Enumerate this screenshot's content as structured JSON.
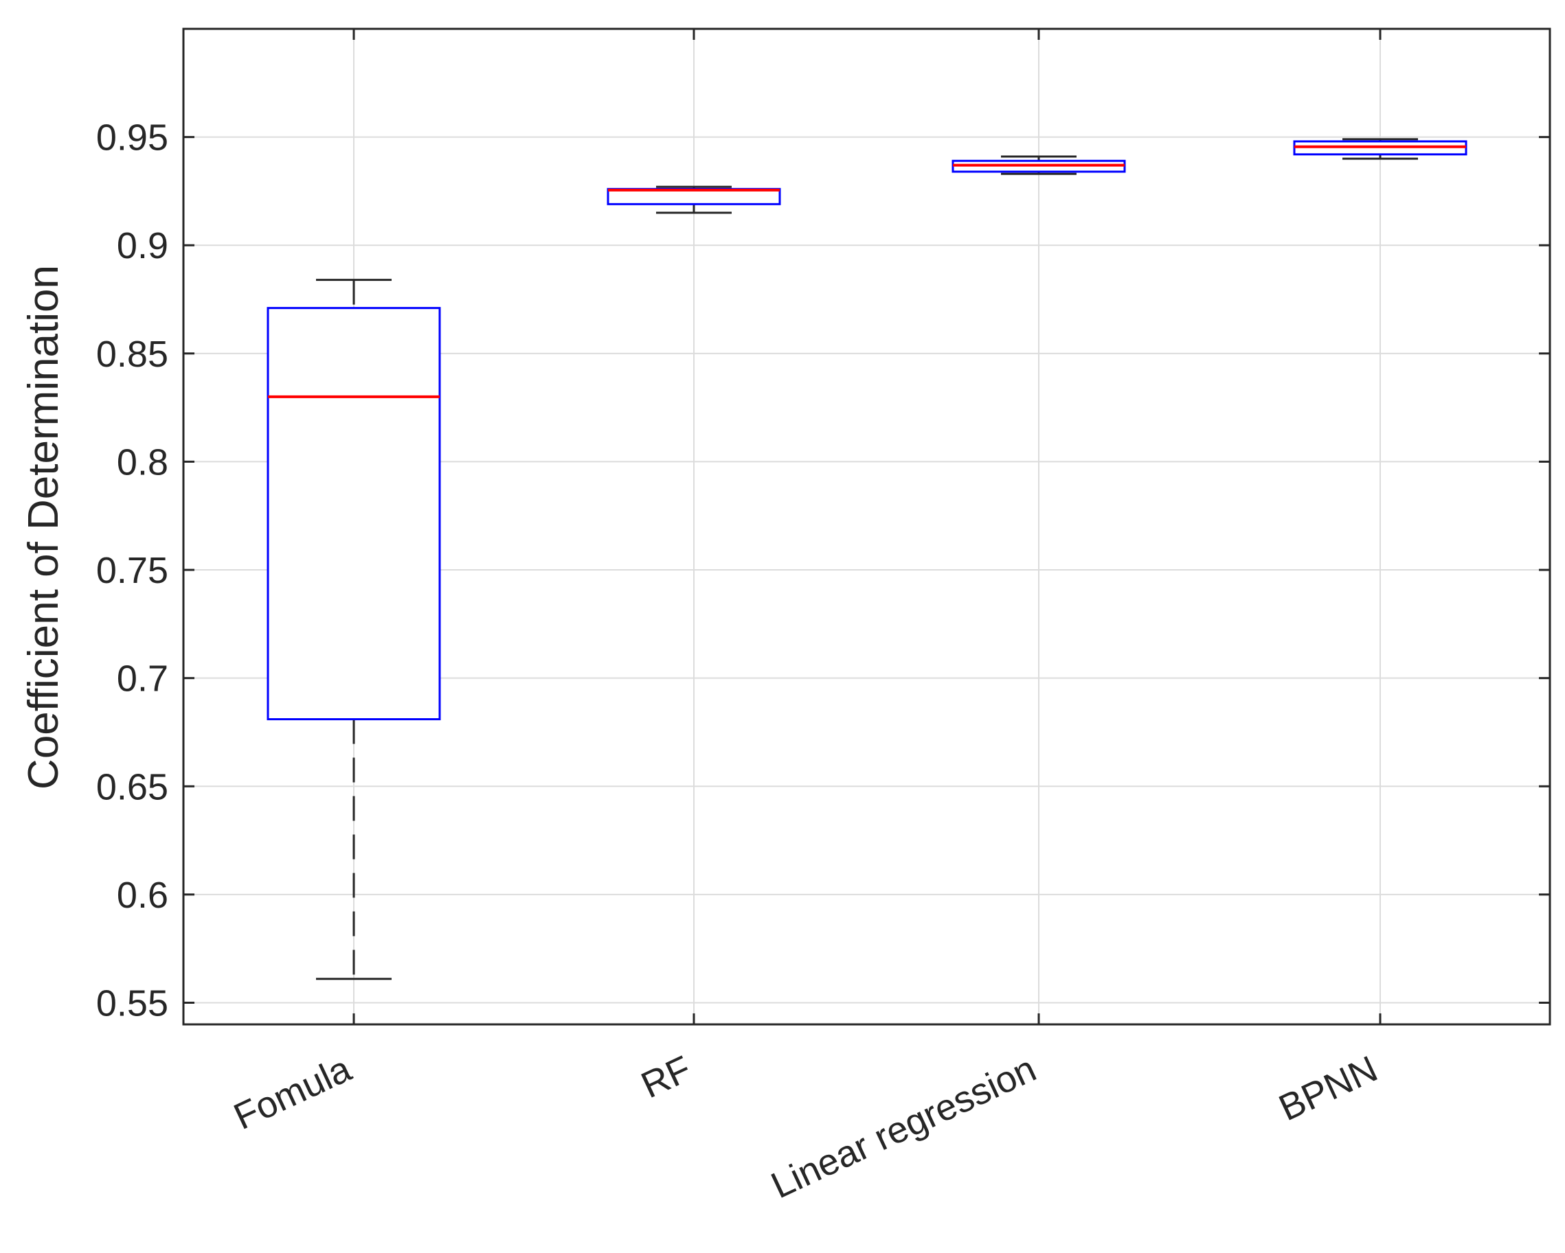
{
  "chart_data": {
    "type": "boxplot",
    "title": "",
    "xlabel": "",
    "ylabel": "Coefficient of Determination",
    "ylim": [
      0.54,
      1.0
    ],
    "yticks": [
      0.55,
      0.6,
      0.65,
      0.7,
      0.75,
      0.8,
      0.85,
      0.9,
      0.95
    ],
    "ytick_labels": [
      "0.55",
      "0.6",
      "0.65",
      "0.7",
      "0.75",
      "0.8",
      "0.85",
      "0.9",
      "0.95"
    ],
    "grid": true,
    "categories": [
      "Fomula",
      "RF",
      "Linear regression",
      "BPNN"
    ],
    "boxes": [
      {
        "category": "Fomula",
        "whisker_low": 0.561,
        "q1": 0.681,
        "median": 0.83,
        "q3": 0.871,
        "whisker_high": 0.884
      },
      {
        "category": "RF",
        "whisker_low": 0.915,
        "q1": 0.919,
        "median": 0.9255,
        "q3": 0.926,
        "whisker_high": 0.927
      },
      {
        "category": "Linear regression",
        "whisker_low": 0.933,
        "q1": 0.934,
        "median": 0.937,
        "q3": 0.939,
        "whisker_high": 0.941
      },
      {
        "category": "BPNN",
        "whisker_low": 0.94,
        "q1": 0.942,
        "median": 0.9455,
        "q3": 0.948,
        "whisker_high": 0.949
      }
    ],
    "colors": {
      "box": "#0000ff",
      "median": "#ff0000",
      "whisker": "#262626",
      "grid": "#dcdcdc",
      "axis": "#262626"
    }
  }
}
